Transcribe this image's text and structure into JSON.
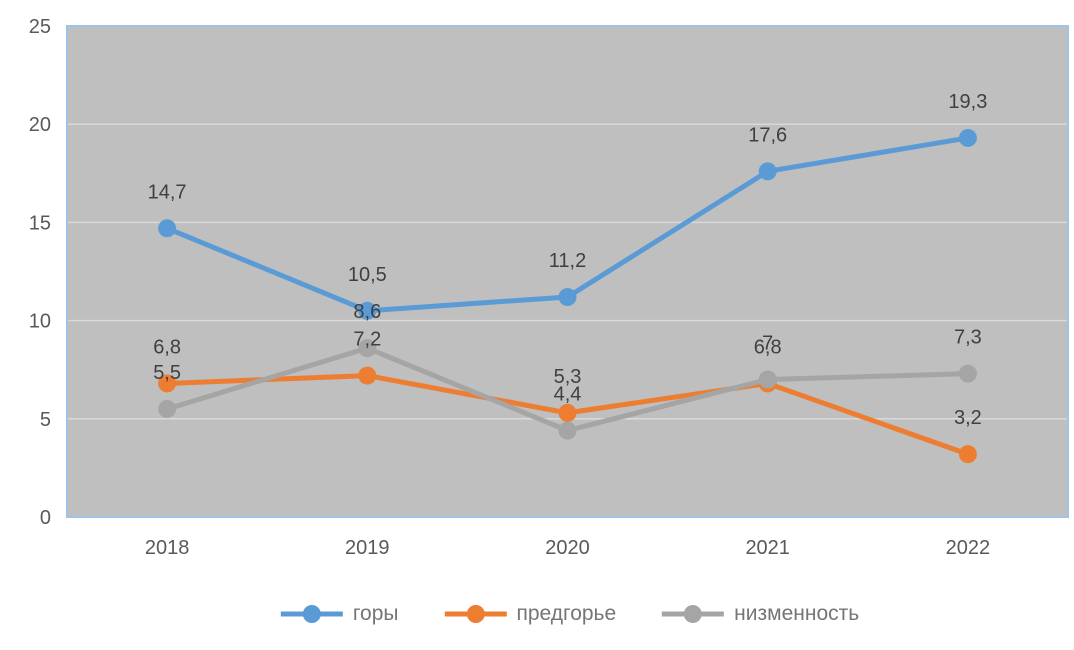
{
  "chart_data": {
    "type": "line",
    "title": "",
    "xlabel": "",
    "ylabel": "",
    "categories": [
      "2018",
      "2019",
      "2020",
      "2021",
      "2022"
    ],
    "series": [
      {
        "name": "горы",
        "color": "#5b9bd5",
        "values": [
          14.7,
          10.5,
          11.2,
          17.6,
          19.3
        ],
        "labels": [
          "14,7",
          "10,5",
          "11,2",
          "17,6",
          "19,3"
        ]
      },
      {
        "name": "предгорье",
        "color": "#ed7d31",
        "values": [
          6.8,
          7.2,
          5.3,
          6.8,
          3.2
        ],
        "labels": [
          "6,8",
          "7,2",
          "5,3",
          "6,8",
          "3,2"
        ]
      },
      {
        "name": "низменность",
        "color": "#a5a5a5",
        "values": [
          5.5,
          8.6,
          4.4,
          7,
          7.3
        ],
        "labels": [
          "5,5",
          "8,6",
          "4,4",
          "7",
          "7,3"
        ]
      }
    ],
    "ylim": [
      0,
      25
    ],
    "yticks": [
      0,
      5,
      10,
      15,
      20,
      25
    ],
    "grid": true,
    "legend_position": "bottom",
    "legend_entries": [
      "горы",
      "предгорье",
      "низменность"
    ]
  },
  "colors": {
    "background": "#ffffff",
    "plot_bg": "#bfbfbf",
    "plot_border": "#9dc3e6",
    "gridline": "#d9d9d9",
    "tick_text": "#595959",
    "axis_text": "#595959",
    "data_label": "#404040",
    "legend_text": "#757575"
  }
}
